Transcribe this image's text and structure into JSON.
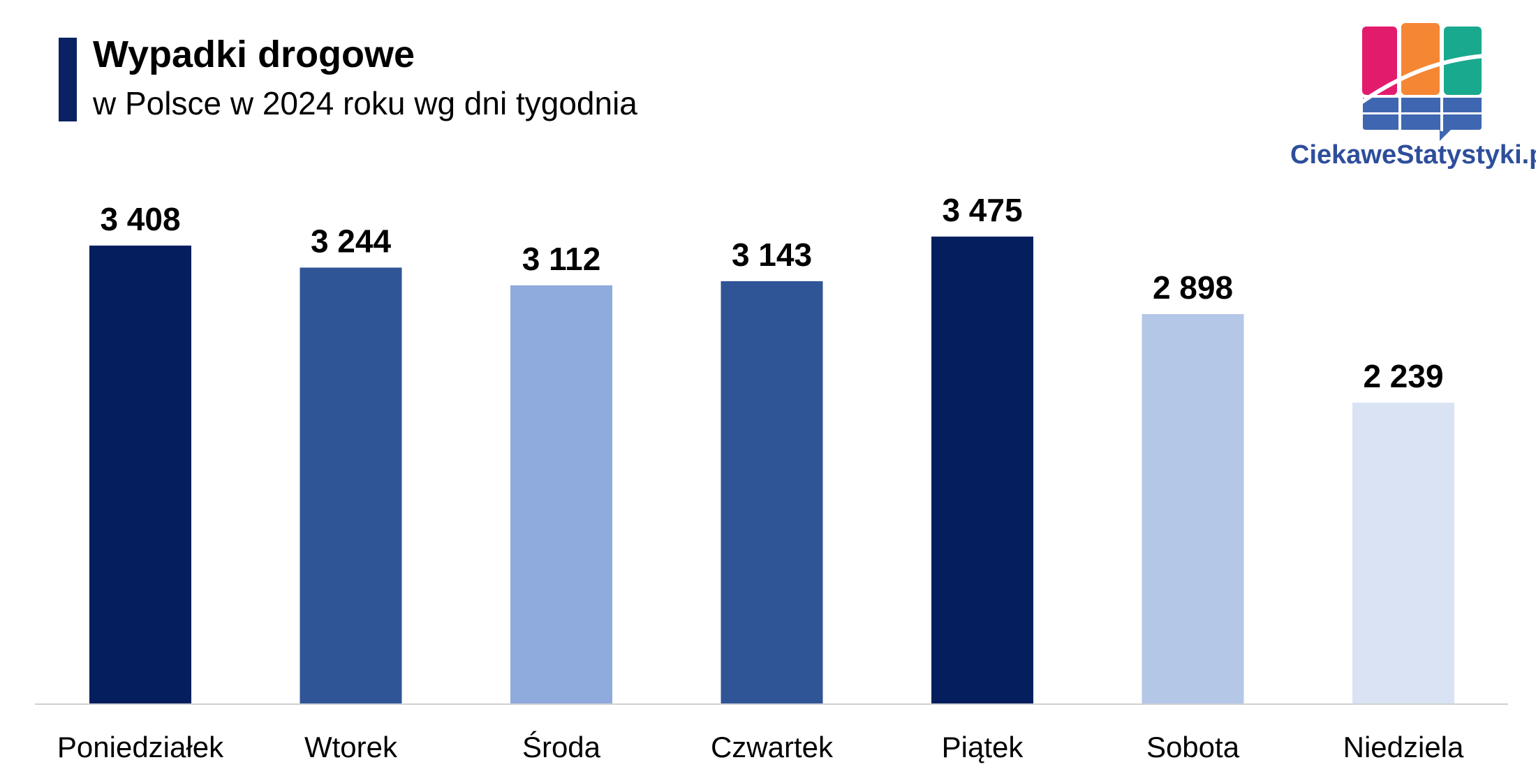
{
  "header": {
    "title": "Wypadki drogowe",
    "subtitle": "w Polsce w 2024 roku wg dni tygodnia"
  },
  "logo": {
    "text": "CiekaweStatystyki.pl",
    "colors": [
      "#e31b6d",
      "#f58634",
      "#18a98e",
      "#3f67b1"
    ]
  },
  "chart_data": {
    "type": "bar",
    "title": "Wypadki drogowe",
    "subtitle": "w Polsce w 2024 roku wg dni tygodnia",
    "categories": [
      "Poniedziałek",
      "Wtorek",
      "Środa",
      "Czwartek",
      "Piątek",
      "Sobota",
      "Niedziela"
    ],
    "values": [
      3408,
      3244,
      3112,
      3143,
      3475,
      2898,
      2239
    ],
    "labels": [
      "3 408",
      "3 244",
      "3 112",
      "3 143",
      "3 475",
      "2 898",
      "2 239"
    ],
    "colors": [
      "#051f5e",
      "#2f5597",
      "#8faadc",
      "#2f5597",
      "#051f5e",
      "#b4c7e7",
      "#dae3f3"
    ],
    "ylim": [
      0,
      3475
    ],
    "xlabel": "",
    "ylabel": "",
    "grid": false,
    "legend": "none"
  }
}
